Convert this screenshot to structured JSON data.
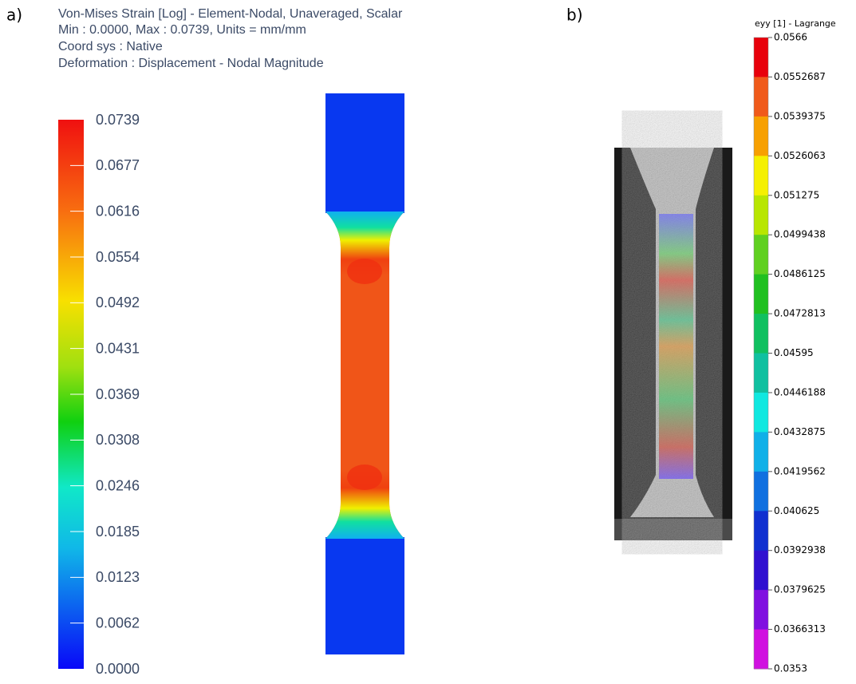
{
  "panel_a": {
    "label": "a)",
    "header": [
      "Von-Mises Strain [Log] - Element-Nodal, Unaveraged, Scalar",
      "Min : 0.0000, Max : 0.0739, Units = mm/mm",
      "Coord sys : Native",
      "Deformation : Displacement - Nodal Magnitude"
    ],
    "colorbar_labels": [
      "0.0739",
      "0.0677",
      "0.0616",
      "0.0554",
      "0.0492",
      "0.0431",
      "0.0369",
      "0.0308",
      "0.0246",
      "0.0185",
      "0.0123",
      "0.0062",
      "0.0000"
    ]
  },
  "panel_b": {
    "label": "b)",
    "colorbar_title": "eyy [1] - Lagrange",
    "colorbar_labels": [
      "0.0566",
      "0.0552687",
      "0.0539375",
      "0.0526063",
      "0.051275",
      "0.0499438",
      "0.0486125",
      "0.0472813",
      "0.04595",
      "0.0446188",
      "0.0432875",
      "0.0419562",
      "0.040625",
      "0.0392938",
      "0.0379625",
      "0.0366313",
      "0.0353"
    ]
  }
}
